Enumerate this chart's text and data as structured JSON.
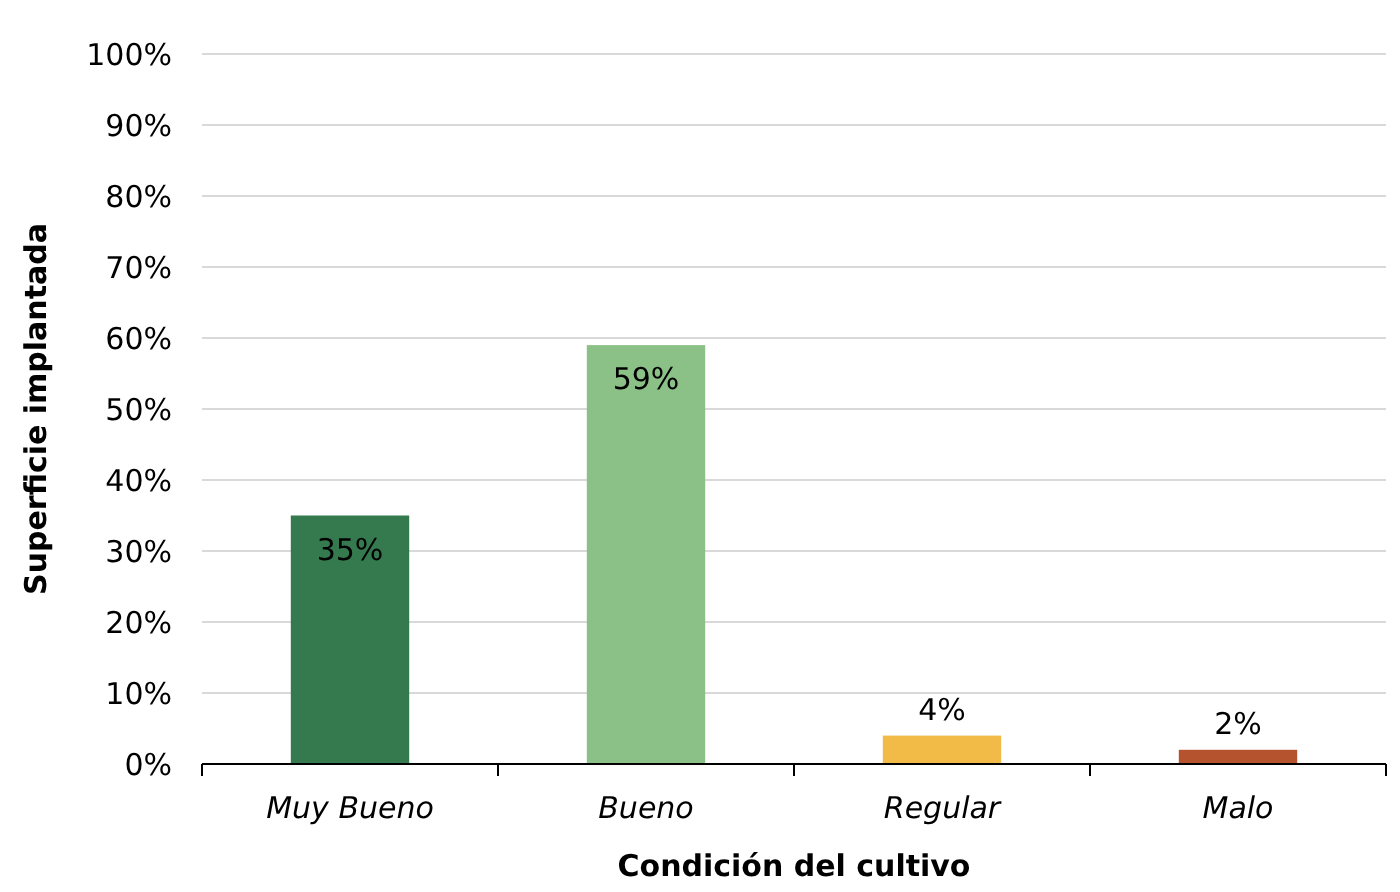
{
  "chart_data": {
    "type": "bar",
    "xlabel": "Condición del cultivo",
    "ylabel": "Superficie implantada",
    "categories": [
      "Muy Bueno",
      "Bueno",
      "Regular",
      "Malo"
    ],
    "values": [
      35,
      59,
      4,
      2
    ],
    "colors": [
      "#357a4f",
      "#8bc087",
      "#f2bb47",
      "#b5532e"
    ],
    "value_labels": [
      "35%",
      "59%",
      "4%",
      "2%"
    ],
    "ylim": [
      0,
      100
    ],
    "yticks": [
      {
        "value": 0,
        "label": "0%"
      },
      {
        "value": 10,
        "label": "10%"
      },
      {
        "value": 20,
        "label": "20%"
      },
      {
        "value": 30,
        "label": "30%"
      },
      {
        "value": 40,
        "label": "40%"
      },
      {
        "value": 50,
        "label": "50%"
      },
      {
        "value": 60,
        "label": "60%"
      },
      {
        "value": 70,
        "label": "70%"
      },
      {
        "value": 80,
        "label": "80%"
      },
      {
        "value": 90,
        "label": "90%"
      },
      {
        "value": 100,
        "label": "100%"
      }
    ],
    "grid": "y"
  }
}
